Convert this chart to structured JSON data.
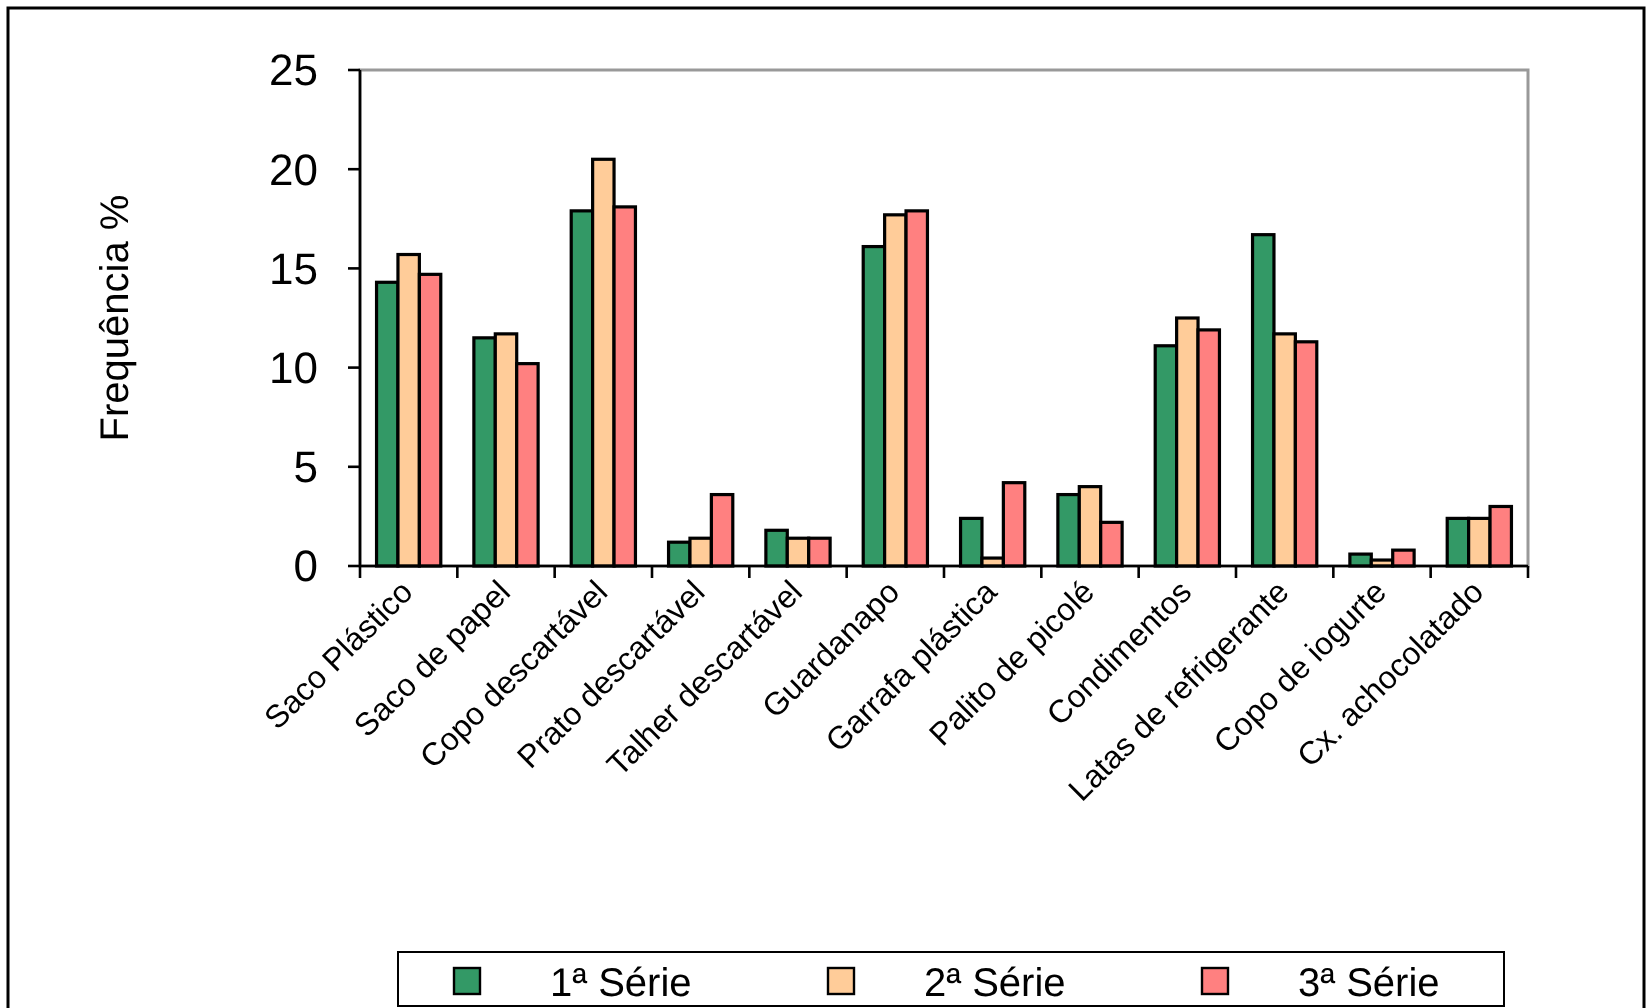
{
  "chart_data": {
    "type": "bar",
    "ylabel": "Frequência %",
    "categories": [
      "Saco Plástico",
      "Saco de papel",
      "Copo descartável",
      "Prato descartável",
      "Talher descartável",
      "Guardanapo",
      "Garrafa plástica",
      "Palito de picolé",
      "Condimentos",
      "Latas de refrigerante",
      "Copo de iogurte",
      "Cx. achocolatado"
    ],
    "series": [
      {
        "name": "1ª Série",
        "color": "#339966",
        "values": [
          14.3,
          11.5,
          17.9,
          1.2,
          1.8,
          16.1,
          2.4,
          3.6,
          11.1,
          16.7,
          0.6,
          2.4
        ]
      },
      {
        "name": "2ª Série",
        "color": "#ffcc99",
        "values": [
          15.7,
          11.7,
          20.5,
          1.4,
          1.4,
          17.7,
          0.4,
          4.0,
          12.5,
          11.7,
          0.3,
          2.4
        ]
      },
      {
        "name": "3ª Série",
        "color": "#ff8080",
        "values": [
          14.7,
          10.2,
          18.1,
          3.6,
          1.4,
          17.9,
          4.2,
          2.2,
          11.9,
          11.3,
          0.8,
          3.0
        ]
      }
    ],
    "ylim": [
      0,
      25
    ],
    "yticks": [
      0,
      5,
      10,
      15,
      20,
      25
    ],
    "legend": "bottom"
  }
}
